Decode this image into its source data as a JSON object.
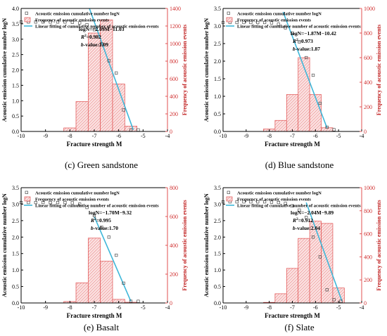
{
  "chart_data": [
    {
      "type": "bar",
      "caption": "(c) Green sandstone",
      "xlabel": "Fracture strength M",
      "ylabel_left": "Acoustic emission cumulative number logN",
      "ylabel_right": "Frequency of acoustic emission events",
      "xlim": [
        -10,
        -4
      ],
      "xticks": [
        "-10",
        "-9",
        "-8",
        "-7",
        "-6",
        "-5",
        "-4"
      ],
      "ylim_left": [
        0,
        4.0
      ],
      "yticks_left": [
        "0.0",
        "0.5",
        "1.0",
        "1.5",
        "2.0",
        "2.5",
        "3.0",
        "3.5",
        "4.0"
      ],
      "ylim_right": [
        0,
        1400
      ],
      "yticks_right": [
        "0",
        "200",
        "400",
        "600",
        "800",
        "1000",
        "1200",
        "1400"
      ],
      "legend": [
        "Acoustic emission cumulative number logN",
        "Frequency of acoustic emission events",
        "Linear fitting of cumulative number of acoustic emission events"
      ],
      "equation": "logN=−2.09M−11.03",
      "r2_label": "R",
      "r2_value": "=0.982",
      "b_label": "b",
      "b_value": "-value:2.09",
      "bars": {
        "x": [
          -8.0,
          -7.5,
          -7.0,
          -6.5,
          -6.0,
          -5.5
        ],
        "values": [
          40,
          340,
          1120,
          1270,
          540,
          60
        ]
      },
      "points": {
        "x": [
          -10.0,
          -9.7,
          -9.4,
          -9.1,
          -8.8,
          -8.5,
          -8.2,
          -7.9,
          -7.6,
          -7.3,
          -7.0,
          -6.7,
          -6.4,
          -6.1,
          -5.8,
          -5.5,
          -5.2
        ],
        "y": [
          3.56,
          3.56,
          3.56,
          3.56,
          3.56,
          3.56,
          3.56,
          3.55,
          3.53,
          3.47,
          3.31,
          2.85,
          2.3,
          1.9,
          0.7,
          0.05,
          0.05
        ]
      },
      "fit": {
        "x": [
          -7.2,
          -5.4
        ],
        "y": [
          4.0,
          0.05
        ]
      }
    },
    {
      "type": "bar",
      "caption": "(d) Blue sandstone",
      "xlabel": "Fracture strength M",
      "ylabel_left": "Acoustic emission cumulative number logN",
      "ylabel_right": "Frequency of acoustic emission events",
      "xlim": [
        -10,
        -4
      ],
      "xticks": [
        "-10",
        "-9",
        "-8",
        "-7",
        "-6",
        "-5",
        "-4"
      ],
      "ylim_left": [
        0,
        3.5
      ],
      "yticks_left": [
        "0.0",
        "0.5",
        "1.0",
        "1.5",
        "2.0",
        "2.5",
        "3.0",
        "3.5"
      ],
      "ylim_right": [
        0,
        1000
      ],
      "yticks_right": [
        "0",
        "200",
        "400",
        "600",
        "800",
        "1000"
      ],
      "legend": [
        "Acoustic emission cumulative number logN",
        "Frequency of acoustic emission events",
        "Linear fitting of cumulative number of acoustic emission events"
      ],
      "equation": "logN=−1.87M−10.42",
      "r2_label": "R",
      "r2_value": "=0.973",
      "b_label": "b",
      "b_value": "-value:1.87",
      "bars": {
        "x": [
          -8.0,
          -7.5,
          -7.0,
          -6.5,
          -6.0,
          -5.5
        ],
        "values": [
          20,
          90,
          300,
          600,
          300,
          30
        ]
      },
      "points": {
        "x": [
          -10.0,
          -9.7,
          -9.4,
          -9.1,
          -8.8,
          -8.5,
          -8.2,
          -7.9,
          -7.6,
          -7.3,
          -7.0,
          -6.7,
          -6.4,
          -6.1,
          -5.8,
          -5.5,
          -5.2
        ],
        "y": [
          3.1,
          3.1,
          3.1,
          3.1,
          3.1,
          3.1,
          3.1,
          3.09,
          3.05,
          2.95,
          2.8,
          2.55,
          2.1,
          1.6,
          0.8,
          0.12,
          0.05
        ]
      },
      "fit": {
        "x": [
          -7.4,
          -5.5
        ],
        "y": [
          3.4,
          0.1
        ]
      }
    },
    {
      "type": "bar",
      "caption": "(e) Basalt",
      "xlabel": "Fracture strength M",
      "ylabel_left": "Acoustic emission cumulative number logN",
      "ylabel_right": "Frequency of acoustic emission events",
      "xlim": [
        -10,
        -4
      ],
      "xticks": [
        "-10",
        "-9",
        "-8",
        "-7",
        "-6",
        "-5",
        "-4"
      ],
      "ylim_left": [
        0,
        3.5
      ],
      "yticks_left": [
        "0.0",
        "0.5",
        "1.0",
        "1.5",
        "2.0",
        "2.5",
        "3.0",
        "3.5"
      ],
      "ylim_right": [
        0,
        800
      ],
      "yticks_right": [
        "0",
        "200",
        "400",
        "600",
        "800"
      ],
      "legend": [
        "Acoustic emission cumulative number logN",
        "Frequency of acoustic emission events",
        "Linear fitting of cumulative number of acoustic emission events"
      ],
      "equation": "logN=−1.70M−9.32",
      "r2_label": "R",
      "r2_value": "=0.995",
      "b_label": "b",
      "b_value": "-value:1.70",
      "bars": {
        "x": [
          -8.0,
          -7.5,
          -7.0,
          -6.5,
          -6.0,
          -5.5
        ],
        "values": [
          10,
          140,
          450,
          290,
          25,
          5
        ]
      },
      "points": {
        "x": [
          -10.0,
          -9.7,
          -9.4,
          -9.1,
          -8.8,
          -8.5,
          -8.2,
          -7.9,
          -7.6,
          -7.3,
          -7.0,
          -6.7,
          -6.4,
          -6.1,
          -5.8,
          -5.5,
          -5.2
        ],
        "y": [
          3.05,
          3.05,
          3.05,
          3.05,
          3.05,
          3.05,
          3.05,
          3.04,
          3.0,
          2.9,
          2.65,
          2.3,
          2.0,
          1.45,
          0.6,
          0.05,
          0.05
        ]
      },
      "fit": {
        "x": [
          -7.0,
          -5.5
        ],
        "y": [
          2.62,
          0.05
        ]
      }
    },
    {
      "type": "bar",
      "caption": "(f) Slate",
      "xlabel": "Fracture strength M",
      "ylabel_left": "Acoustic emission cumulative number logN",
      "ylabel_right": "Frequency of acoustic emission events",
      "xlim": [
        -10,
        -4
      ],
      "xticks": [
        "-10",
        "-9",
        "-8",
        "-7",
        "-6",
        "-5",
        "-4"
      ],
      "ylim_left": [
        0,
        3.5
      ],
      "yticks_left": [
        "0.0",
        "0.5",
        "1.0",
        "1.5",
        "2.0",
        "2.5",
        "3.0",
        "3.5"
      ],
      "ylim_right": [
        0,
        1000
      ],
      "yticks_right": [
        "0",
        "200",
        "400",
        "600",
        "800",
        "1000"
      ],
      "legend": [
        "Acoustic emission cumulative number logN",
        "Frequency of acoustic emission events",
        "Linear fitting of cumulative number of acoustic emission events"
      ],
      "equation": "logN=−2.04M−9.89",
      "r2_label": "R",
      "r2_value": "=0.912",
      "b_label": "b",
      "b_value": "-value:2.04",
      "bars": {
        "x": [
          -8.0,
          -7.5,
          -7.0,
          -6.5,
          -6.0,
          -5.5,
          -5.0
        ],
        "values": [
          5,
          80,
          300,
          560,
          710,
          690,
          130
        ]
      },
      "points": {
        "x": [
          -10.0,
          -9.7,
          -9.4,
          -9.1,
          -8.8,
          -8.5,
          -8.2,
          -7.9,
          -7.6,
          -7.3,
          -7.0,
          -6.7,
          -6.4,
          -6.1,
          -5.8,
          -5.5,
          -5.2,
          -4.9
        ],
        "y": [
          3.07,
          3.07,
          3.07,
          3.07,
          3.07,
          3.07,
          3.07,
          3.06,
          3.05,
          3.02,
          2.95,
          2.82,
          2.6,
          2.0,
          1.4,
          0.4,
          0.1,
          0.05
        ]
      },
      "fit": {
        "x": [
          -6.4,
          -4.85
        ],
        "y": [
          3.05,
          0.05
        ]
      }
    }
  ]
}
